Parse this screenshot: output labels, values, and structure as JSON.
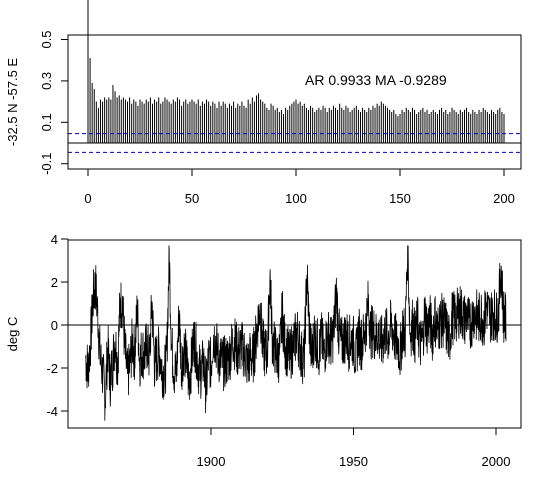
{
  "chart_data": [
    {
      "type": "bar",
      "xlabel": "",
      "ylabel": "-32.5 N -57.5 E",
      "xlim": [
        0,
        200
      ],
      "ylim": [
        -0.1,
        0.5
      ],
      "xticks": [
        "0",
        "50",
        "100",
        "150",
        "200"
      ],
      "yticks": [
        "-0.1",
        "0.1",
        "0.3",
        "0.5"
      ],
      "annotation": "AR 0.9933  MA -0.9289",
      "zero_line": 0,
      "confidence_bounds": [
        0.045,
        -0.045
      ],
      "lags": {
        "start": 0,
        "end": 200
      },
      "acf_values": [
        1.0,
        0.41,
        0.29,
        0.26,
        0.2,
        0.17,
        0.21,
        0.2,
        0.22,
        0.21,
        0.22,
        0.21,
        0.28,
        0.25,
        0.22,
        0.23,
        0.21,
        0.22,
        0.21,
        0.2,
        0.22,
        0.19,
        0.21,
        0.2,
        0.18,
        0.21,
        0.2,
        0.19,
        0.21,
        0.2,
        0.22,
        0.19,
        0.21,
        0.2,
        0.22,
        0.19,
        0.2,
        0.22,
        0.21,
        0.2,
        0.19,
        0.21,
        0.2,
        0.22,
        0.21,
        0.18,
        0.2,
        0.21,
        0.19,
        0.2,
        0.21,
        0.2,
        0.19,
        0.21,
        0.18,
        0.2,
        0.19,
        0.21,
        0.2,
        0.18,
        0.2,
        0.19,
        0.17,
        0.2,
        0.18,
        0.2,
        0.19,
        0.17,
        0.19,
        0.18,
        0.2,
        0.17,
        0.19,
        0.18,
        0.2,
        0.18,
        0.17,
        0.21,
        0.19,
        0.22,
        0.2,
        0.23,
        0.24,
        0.21,
        0.2,
        0.19,
        0.17,
        0.16,
        0.19,
        0.18,
        0.16,
        0.17,
        0.15,
        0.16,
        0.14,
        0.17,
        0.16,
        0.18,
        0.19,
        0.2,
        0.21,
        0.19,
        0.2,
        0.18,
        0.19,
        0.17,
        0.16,
        0.18,
        0.17,
        0.15,
        0.16,
        0.17,
        0.16,
        0.18,
        0.17,
        0.15,
        0.17,
        0.16,
        0.18,
        0.17,
        0.16,
        0.19,
        0.17,
        0.16,
        0.18,
        0.17,
        0.15,
        0.16,
        0.17,
        0.18,
        0.16,
        0.15,
        0.17,
        0.16,
        0.15,
        0.17,
        0.16,
        0.18,
        0.17,
        0.19,
        0.18,
        0.2,
        0.19,
        0.18,
        0.17,
        0.16,
        0.15,
        0.16,
        0.14,
        0.13,
        0.14,
        0.16,
        0.15,
        0.17,
        0.16,
        0.15,
        0.17,
        0.16,
        0.14,
        0.15,
        0.16,
        0.17,
        0.15,
        0.16,
        0.14,
        0.15,
        0.16,
        0.15,
        0.14,
        0.16,
        0.17,
        0.15,
        0.16,
        0.14,
        0.15,
        0.17,
        0.16,
        0.15,
        0.14,
        0.16,
        0.15,
        0.16,
        0.17,
        0.15,
        0.14,
        0.16,
        0.15,
        0.14,
        0.16,
        0.15,
        0.17,
        0.16,
        0.15,
        0.14,
        0.16,
        0.15,
        0.14,
        0.16,
        0.17,
        0.15,
        0.14
      ]
    },
    {
      "type": "line",
      "xlabel": "",
      "ylabel": "deg C",
      "xlim": [
        1848,
        2008
      ],
      "ylim": [
        -5,
        4.1
      ],
      "xticks": [
        "1900",
        "1950",
        "2000"
      ],
      "yticks": [
        "-4",
        "-2",
        "0",
        "2",
        "4"
      ],
      "zero_line": 0,
      "x_start": 1856,
      "x_end": 2003.5,
      "points_per_year": 12,
      "series": [
        {
          "values": [
            -1.5,
            -2.1,
            -0.8,
            1.2,
            1.9,
            0.4,
            -1.6,
            -2.3,
            -3.4,
            -1.0,
            -2.6,
            -1.8,
            -0.6,
            -1.9,
            0.9,
            1.1,
            -1.2,
            -2.4,
            -1.9,
            -0.8,
            -1.4,
            0.8,
            -1.7,
            -1.2,
            -1.4,
            -0.9,
            -1.6,
            1.1,
            -1.8,
            -1.5,
            -1.2,
            -2.0,
            -2.3,
            -1.6,
            3.3,
            -1.0,
            -2.1,
            -2.3,
            0.6,
            -1.9,
            -1.1,
            -1.6,
            -2.7,
            -1.8,
            -0.6,
            -1.2,
            -2.0,
            -2.2,
            -1.7,
            -3.1,
            -1.5,
            -1.9,
            -0.4,
            -0.8,
            -1.5,
            -1.6,
            -1.8,
            -1.7,
            -1.6,
            -1.2,
            -0.7,
            -0.9,
            -1.3,
            -1.0,
            -1.1,
            -1.5,
            -1.9,
            -1.4,
            -1.6,
            -0.9,
            0.1,
            0.9,
            -0.9,
            -1.3,
            -1.2,
            2.4,
            -0.8,
            -1.1,
            -1.6,
            -1.3,
            0.6,
            -0.9,
            -1.2,
            -1.5,
            -1.1,
            -0.8,
            -0.3,
            -0.9,
            -1.5,
            -1.4,
            2.4,
            -0.1,
            -1.6,
            -0.4,
            -0.8,
            -1.2,
            -0.6,
            -1.4,
            -0.6,
            -0.5,
            -0.9,
            -0.2,
            1.6,
            -0.4,
            -0.9,
            -0.7,
            -0.4,
            -0.9,
            -0.6,
            -0.8,
            -1.6,
            -0.3,
            -0.9,
            -0.6,
            0.0,
            1.0,
            -0.4,
            -0.2,
            -0.6,
            -0.3,
            -0.9,
            -0.7,
            -0.3,
            -0.6,
            -0.1,
            -0.2,
            -0.7,
            -0.8,
            -1.4,
            -0.1,
            -0.5,
            3.7,
            -0.4,
            0.1,
            -0.6,
            0.2,
            -0.9,
            -0.8,
            0.6,
            -0.2,
            0.3,
            -0.5,
            0.4,
            -0.3,
            0.1,
            0.2,
            0.1,
            -0.3,
            -0.8,
            0.4,
            0.3,
            0.4,
            0.7,
            0.6,
            0.2,
            0.5,
            0.0,
            0.2,
            0.6,
            0.4,
            0.3,
            0.5,
            0.1,
            0.9,
            0.5,
            0.4,
            0.6,
            0.3,
            0.7,
            2.8,
            0.4,
            0.2
          ]
        }
      ]
    }
  ]
}
